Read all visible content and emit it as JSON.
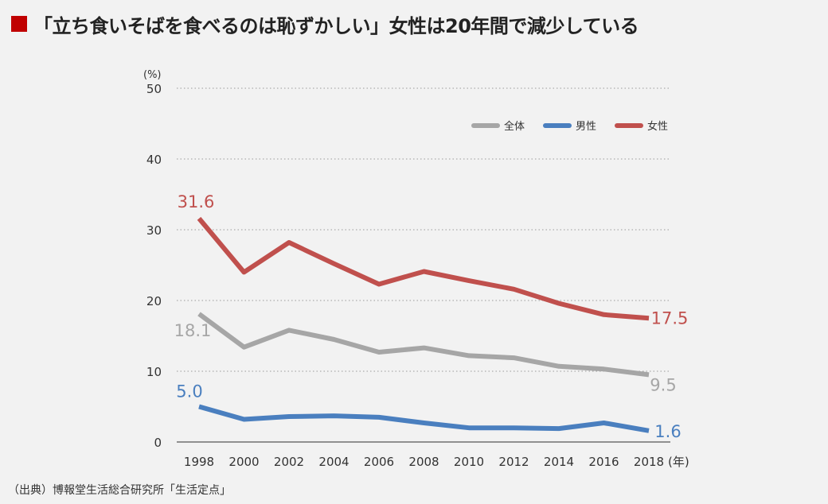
{
  "title": "「立ち食いそばを食べるのは恥ずかしい」女性は20年間で減少している",
  "title_marker_color": "#c00000",
  "source": "（出典）博報堂生活総合研究所「生活定点」",
  "chart_data": {
    "type": "line",
    "ylabel": "(%)",
    "xunit": "(年)",
    "ylim": [
      0,
      50
    ],
    "yticks": [
      0,
      10,
      20,
      30,
      40,
      50
    ],
    "grid": true,
    "legend_position": "top-right",
    "categories": [
      "1998",
      "2000",
      "2002",
      "2004",
      "2006",
      "2008",
      "2010",
      "2012",
      "2014",
      "2016",
      "2018"
    ],
    "series": [
      {
        "name": "全体",
        "color": "#a6a6a6",
        "values": [
          18.1,
          13.4,
          15.8,
          14.5,
          12.7,
          13.3,
          12.2,
          11.9,
          10.7,
          10.3,
          9.5
        ],
        "labels": {
          "start": "18.1",
          "end": "9.5"
        }
      },
      {
        "name": "男性",
        "color": "#4a7fbf",
        "values": [
          5.0,
          3.2,
          3.6,
          3.7,
          3.5,
          2.7,
          2.0,
          2.0,
          1.9,
          2.7,
          1.6
        ],
        "labels": {
          "start": "5.0",
          "end": "1.6"
        }
      },
      {
        "name": "女性",
        "color": "#c0504d",
        "values": [
          31.6,
          24.0,
          28.2,
          25.2,
          22.3,
          24.1,
          22.8,
          21.6,
          19.6,
          18.0,
          17.5
        ],
        "labels": {
          "start": "31.6",
          "end": "17.5"
        }
      }
    ]
  }
}
